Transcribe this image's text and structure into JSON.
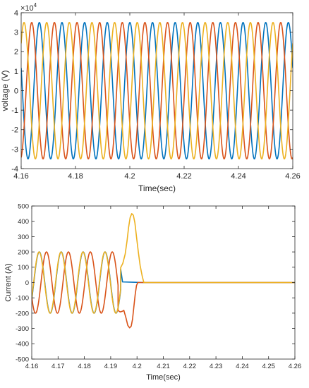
{
  "chart_data": [
    {
      "type": "line",
      "xlabel": "Time(sec)",
      "ylabel": "voltage (V)",
      "exponent_label": "×10",
      "exponent_power": "4",
      "xlim": [
        4.16,
        4.26
      ],
      "ylim": [
        -4,
        4
      ],
      "xticks": [
        4.16,
        4.18,
        4.2,
        4.22,
        4.24,
        4.26
      ],
      "xtick_labels": [
        "4.16",
        "4.18",
        "4.2",
        "4.22",
        "4.24",
        "4.26"
      ],
      "yticks": [
        -4,
        -3,
        -2,
        -1,
        0,
        1,
        2,
        3,
        4
      ],
      "ytick_labels": [
        "-4",
        "-3",
        "-2",
        "-1",
        "0",
        "1",
        "2",
        "3",
        "4"
      ],
      "grid": false,
      "series": [
        {
          "color": "#0072BD",
          "kind": "sine",
          "amplitude": 3.5,
          "frequency_hz": 120,
          "peak_time": 4.1667
        },
        {
          "color": "#D95319",
          "kind": "sine",
          "amplitude": 3.5,
          "frequency_hz": 120,
          "peak_time": 4.1639
        },
        {
          "color": "#EDB120",
          "kind": "sine",
          "amplitude": 3.5,
          "frequency_hz": 120,
          "peak_time": 4.1694
        }
      ]
    },
    {
      "type": "line",
      "xlabel": "Time(sec)",
      "ylabel": "Current (A)",
      "xlim": [
        4.16,
        4.26
      ],
      "ylim": [
        -500,
        500
      ],
      "xticks": [
        4.16,
        4.17,
        4.18,
        4.19,
        4.2,
        4.21,
        4.22,
        4.23,
        4.24,
        4.25,
        4.26
      ],
      "xtick_labels": [
        "4.16",
        "4.17",
        "4.18",
        "4.19",
        "4.2",
        "4.21",
        "4.22",
        "4.23",
        "4.24",
        "4.25",
        "4.26"
      ],
      "yticks": [
        -500,
        -400,
        -300,
        -200,
        -100,
        0,
        100,
        200,
        300,
        400,
        500
      ],
      "ytick_labels": [
        "-500",
        "-400",
        "-300",
        "-200",
        "-100",
        "0",
        "100",
        "200",
        "300",
        "400",
        "500"
      ],
      "grid": false,
      "series": [
        {
          "color": "#0072BD",
          "kind": "sine_then_points",
          "amplitude": 200,
          "frequency_hz": 120,
          "peak_time": 4.1712,
          "end_time": 4.1938,
          "points": [
            [
              4.1938,
              88
            ],
            [
              4.1945,
              4
            ],
            [
              4.1985,
              2
            ],
            [
              4.2025,
              0
            ],
            [
              4.26,
              0
            ]
          ]
        },
        {
          "color": "#D95319",
          "kind": "sine_then_points",
          "amplitude": 200,
          "frequency_hz": 120,
          "peak_time": 4.1656,
          "end_time": 4.1928,
          "points": [
            [
              4.1928,
              -183
            ],
            [
              4.1936,
              -192
            ],
            [
              4.1944,
              -188
            ],
            [
              4.195,
              -182
            ],
            [
              4.1958,
              -230
            ],
            [
              4.1965,
              -280
            ],
            [
              4.1972,
              -296
            ],
            [
              4.1978,
              -285
            ],
            [
              4.1983,
              -240
            ],
            [
              4.1988,
              -160
            ],
            [
              4.1993,
              -80
            ],
            [
              4.1998,
              -20
            ],
            [
              4.2003,
              0
            ],
            [
              4.26,
              0
            ]
          ]
        },
        {
          "color": "#EDB120",
          "kind": "sine_then_points",
          "amplitude": 200,
          "frequency_hz": 120,
          "peak_time": 4.1628,
          "end_time": 4.1938,
          "points": [
            [
              4.1938,
              98
            ],
            [
              4.1946,
              125
            ],
            [
              4.1955,
              185
            ],
            [
              4.1962,
              270
            ],
            [
              4.1968,
              360
            ],
            [
              4.1974,
              425
            ],
            [
              4.198,
              450
            ],
            [
              4.1986,
              440
            ],
            [
              4.1992,
              390
            ],
            [
              4.1998,
              300
            ],
            [
              4.2005,
              200
            ],
            [
              4.2012,
              110
            ],
            [
              4.202,
              40
            ],
            [
              4.2026,
              0
            ],
            [
              4.26,
              0
            ]
          ]
        }
      ]
    }
  ]
}
